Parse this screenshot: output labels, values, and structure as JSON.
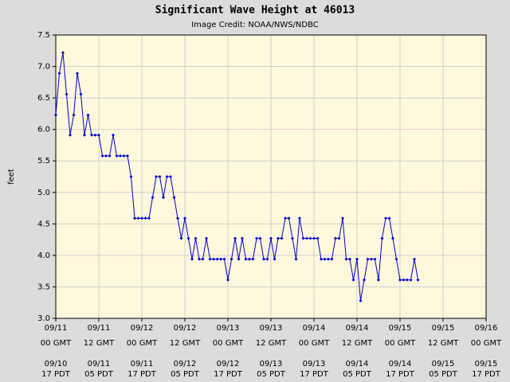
{
  "chart_data": {
    "type": "line",
    "title": "Significant Wave Height at 46013",
    "subtitle": "Image Credit: NOAA/NWS/NDBC",
    "ylabel": "feet",
    "xlim": [
      0,
      120
    ],
    "ylim": [
      3,
      7.5
    ],
    "yticks": [
      {
        "value": 3,
        "label": "3.0"
      },
      {
        "value": 3.5,
        "label": "3.5"
      },
      {
        "value": 4,
        "label": "4.0"
      },
      {
        "value": 4.5,
        "label": "4.5"
      },
      {
        "value": 5,
        "label": "5.0"
      },
      {
        "value": 5.5,
        "label": "5.5"
      },
      {
        "value": 6,
        "label": "6.0"
      },
      {
        "value": 6.5,
        "label": "6.5"
      },
      {
        "value": 7,
        "label": "7.0"
      },
      {
        "value": 7.5,
        "label": "7.5"
      }
    ],
    "xticks": [
      {
        "value": 0,
        "label": "09/11",
        "sublabel": "00 GMT"
      },
      {
        "value": 12,
        "label": "09/11",
        "sublabel": "12 GMT"
      },
      {
        "value": 24,
        "label": "09/12",
        "sublabel": "00 GMT"
      },
      {
        "value": 36,
        "label": "09/12",
        "sublabel": "12 GMT"
      },
      {
        "value": 48,
        "label": "09/13",
        "sublabel": "00 GMT"
      },
      {
        "value": 60,
        "label": "09/13",
        "sublabel": "12 GMT"
      },
      {
        "value": 72,
        "label": "09/14",
        "sublabel": "00 GMT"
      },
      {
        "value": 84,
        "label": "09/14",
        "sublabel": "12 GMT"
      },
      {
        "value": 96,
        "label": "09/15",
        "sublabel": "00 GMT"
      },
      {
        "value": 108,
        "label": "09/15",
        "sublabel": "12 GMT"
      },
      {
        "value": 120,
        "label": "09/16",
        "sublabel": "00 GMT"
      }
    ],
    "x2ticks": [
      {
        "value": 0,
        "label": "09/10",
        "sublabel": "17 PDT"
      },
      {
        "value": 12,
        "label": "09/11",
        "sublabel": "05 PDT"
      },
      {
        "value": 24,
        "label": "09/11",
        "sublabel": "17 PDT"
      },
      {
        "value": 36,
        "label": "09/12",
        "sublabel": "05 PDT"
      },
      {
        "value": 48,
        "label": "09/12",
        "sublabel": "17 PDT"
      },
      {
        "value": 60,
        "label": "09/13",
        "sublabel": "05 PDT"
      },
      {
        "value": 72,
        "label": "09/13",
        "sublabel": "17 PDT"
      },
      {
        "value": 84,
        "label": "09/14",
        "sublabel": "05 PDT"
      },
      {
        "value": 96,
        "label": "09/14",
        "sublabel": "17 PDT"
      },
      {
        "value": 108,
        "label": "09/15",
        "sublabel": "05 PDT"
      },
      {
        "value": 120,
        "label": "09/15",
        "sublabel": "17 PDT"
      }
    ],
    "grid": true,
    "x": [
      0,
      1,
      2,
      3,
      4,
      5,
      6,
      7,
      8,
      9,
      10,
      11,
      12,
      13,
      14,
      15,
      16,
      17,
      18,
      19,
      20,
      21,
      22,
      23,
      24,
      25,
      26,
      27,
      28,
      29,
      30,
      31,
      32,
      33,
      34,
      35,
      36,
      37,
      38,
      39,
      40,
      41,
      42,
      43,
      44,
      45,
      46,
      47,
      48,
      49,
      50,
      51,
      52,
      53,
      54,
      55,
      56,
      57,
      58,
      59,
      60,
      61,
      62,
      63,
      64,
      65,
      66,
      67,
      68,
      69,
      70,
      71,
      72,
      73,
      74,
      75,
      76,
      77,
      78,
      79,
      80,
      81,
      82,
      83,
      84,
      85,
      86,
      87,
      88,
      89,
      90,
      91,
      92,
      93,
      94,
      95,
      96,
      97,
      98,
      99,
      100,
      101
    ],
    "series": [
      {
        "color": "#0000cc",
        "values": [
          6.23,
          6.89,
          7.22,
          6.56,
          5.91,
          6.23,
          6.89,
          6.56,
          5.91,
          6.23,
          5.91,
          5.91,
          5.91,
          5.58,
          5.58,
          5.58,
          5.91,
          5.58,
          5.58,
          5.58,
          5.58,
          5.25,
          4.59,
          4.59,
          4.59,
          4.59,
          4.59,
          4.92,
          5.25,
          5.25,
          4.92,
          5.25,
          5.25,
          4.92,
          4.59,
          4.27,
          4.59,
          4.27,
          3.94,
          4.27,
          3.94,
          3.94,
          4.27,
          3.94,
          3.94,
          3.94,
          3.94,
          3.94,
          3.61,
          3.94,
          4.27,
          3.94,
          4.27,
          3.94,
          3.94,
          3.94,
          4.27,
          4.27,
          3.94,
          3.94,
          4.27,
          3.94,
          4.27,
          4.27,
          4.59,
          4.59,
          4.27,
          3.94,
          4.59,
          4.27,
          4.27,
          4.27,
          4.27,
          4.27,
          3.94,
          3.94,
          3.94,
          3.94,
          4.27,
          4.27,
          4.59,
          3.94,
          3.94,
          3.61,
          3.94,
          3.28,
          3.61,
          3.94,
          3.94,
          3.94,
          3.61,
          4.27,
          4.59,
          4.59,
          4.27,
          3.94,
          3.61,
          3.61,
          3.61,
          3.61,
          3.94,
          3.61
        ]
      }
    ]
  }
}
